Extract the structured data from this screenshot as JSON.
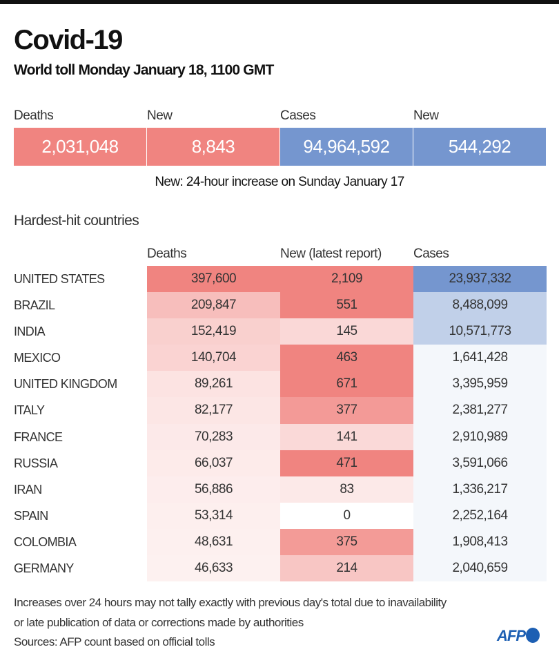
{
  "header": {
    "title": "Covid-19",
    "subtitle": "World toll Monday January 18,  1100 GMT"
  },
  "totals": [
    {
      "label": "Deaths",
      "value": "2,031,048",
      "color": "#f08480"
    },
    {
      "label": "New",
      "value": "8,843",
      "color": "#f08480"
    },
    {
      "label": "Cases",
      "value": "94,964,592",
      "color": "#7596cf"
    },
    {
      "label": "New",
      "value": "544,292",
      "color": "#7596cf"
    }
  ],
  "totals_note": "New: 24-hour increase on Sunday January 17",
  "chart_data": {
    "type": "heatmap",
    "title": "Hardest-hit countries",
    "columns": [
      "Deaths",
      "New (latest report)",
      "Cases"
    ],
    "rows": [
      {
        "country": "UNITED STATES",
        "deaths": 397600,
        "new": 2109,
        "cases": 23937332
      },
      {
        "country": "BRAZIL",
        "deaths": 209847,
        "new": 551,
        "cases": 8488099
      },
      {
        "country": "INDIA",
        "deaths": 152419,
        "new": 145,
        "cases": 10571773
      },
      {
        "country": "MEXICO",
        "deaths": 140704,
        "new": 463,
        "cases": 1641428
      },
      {
        "country": "UNITED KINGDOM",
        "deaths": 89261,
        "new": 671,
        "cases": 3395959
      },
      {
        "country": "ITALY",
        "deaths": 82177,
        "new": 377,
        "cases": 2381277
      },
      {
        "country": "FRANCE",
        "deaths": 70283,
        "new": 141,
        "cases": 2910989
      },
      {
        "country": "RUSSIA",
        "deaths": 66037,
        "new": 471,
        "cases": 3591066
      },
      {
        "country": "IRAN",
        "deaths": 56886,
        "new": 83,
        "cases": 1336217
      },
      {
        "country": "SPAIN",
        "deaths": 53314,
        "new": 0,
        "cases": 2252164
      },
      {
        "country": "COLOMBIA",
        "deaths": 48631,
        "new": 375,
        "cases": 1908413
      },
      {
        "country": "GERMANY",
        "deaths": 46633,
        "new": 214,
        "cases": 2040659
      }
    ],
    "colors": {
      "deaths": "#f08480",
      "cases": "#7596cf"
    }
  },
  "footer": {
    "lines": [
      "Increases over 24 hours may not tally exactly with previous day's total due to inavailability",
      "or late publication of data or corrections made by authorities",
      "Sources: AFP count based on official tolls"
    ],
    "logo": "AFP"
  }
}
